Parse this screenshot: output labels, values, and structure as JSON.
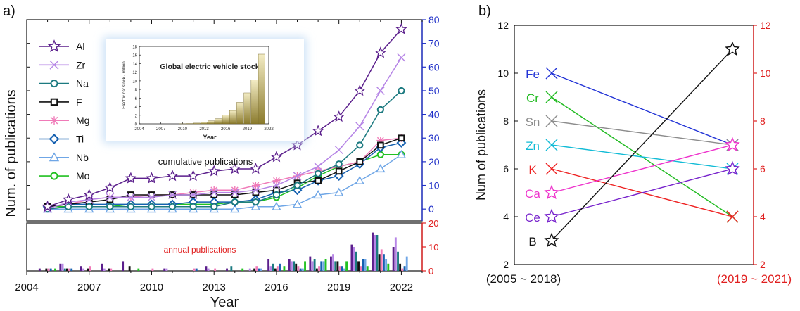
{
  "chart_data": [
    {
      "panel": "a)",
      "type": "line",
      "xlabel": "Year",
      "ylabel": "Num. of publications",
      "xlim": [
        2004,
        2023
      ],
      "xticks": [
        "2004",
        "2007",
        "2010",
        "2013",
        "2016",
        "2019",
        "2022"
      ],
      "ylim_right": [
        -5,
        80
      ],
      "yticks_right": [
        "0",
        "10",
        "20",
        "30",
        "40",
        "50",
        "60",
        "70",
        "80"
      ],
      "annotation": "cumulative publications",
      "x": [
        2005,
        2006,
        2007,
        2008,
        2009,
        2010,
        2011,
        2012,
        2013,
        2014,
        2015,
        2016,
        2017,
        2018,
        2019,
        2020,
        2021,
        2022
      ],
      "series": [
        {
          "name": "Al",
          "color": "#5b1f8c",
          "marker": "star",
          "values": [
            1,
            4,
            6,
            9,
            13,
            13,
            14,
            14,
            16,
            17,
            17,
            22,
            27,
            33,
            39,
            50,
            66,
            76
          ]
        },
        {
          "name": "Zr",
          "color": "#b685e6",
          "marker": "x",
          "values": [
            0,
            3,
            4,
            5,
            5,
            5,
            6,
            6,
            7,
            7,
            8,
            10,
            14,
            18,
            25,
            35,
            50,
            64
          ]
        },
        {
          "name": "Na",
          "color": "#1c7a80",
          "marker": "circle",
          "values": [
            0,
            1,
            1,
            1,
            1,
            1,
            1,
            1,
            1,
            3,
            3,
            6,
            10,
            15,
            19,
            27,
            42,
            50
          ]
        },
        {
          "name": "F",
          "color": "#111111",
          "marker": "square",
          "values": [
            1,
            2,
            3,
            4,
            6,
            6,
            6,
            6,
            6,
            6,
            7,
            8,
            11,
            12,
            16,
            20,
            27,
            30
          ]
        },
        {
          "name": "Mg",
          "color": "#f07ab8",
          "marker": "asterisk",
          "values": [
            1,
            2,
            4,
            5,
            5,
            6,
            6,
            7,
            8,
            8,
            10,
            12,
            14,
            16,
            18,
            20,
            29,
            30
          ]
        },
        {
          "name": "Ti",
          "color": "#1560b0",
          "marker": "diamond",
          "values": [
            1,
            2,
            2,
            2,
            2,
            2,
            2,
            3,
            3,
            3,
            4,
            7,
            8,
            12,
            14,
            19,
            26,
            28
          ]
        },
        {
          "name": "Nb",
          "color": "#6fa6e6",
          "marker": "triangle",
          "values": [
            0,
            0,
            0,
            0,
            0,
            0,
            0,
            0,
            0,
            0,
            1,
            1,
            2,
            6,
            7,
            12,
            17,
            23
          ]
        },
        {
          "name": "Mo",
          "color": "#21c121",
          "marker": "circle",
          "values": [
            1,
            1,
            1,
            1,
            2,
            2,
            2,
            2,
            2,
            3,
            3,
            5,
            9,
            14,
            18,
            20,
            23,
            23
          ]
        }
      ]
    },
    {
      "panel": "a) inset",
      "type": "bar",
      "title": "Global electric vehicle stock",
      "xlabel": "Year",
      "ylabel": "Electric car stock / million",
      "ylim": [
        0,
        18
      ],
      "yticks": [
        "0",
        "2",
        "4",
        "6",
        "8",
        "10",
        "12",
        "14",
        "16",
        "18"
      ],
      "xticks": [
        "2004",
        "2007",
        "2010",
        "2013",
        "2016",
        "2019",
        "2022"
      ],
      "categories": [
        2010,
        2011,
        2012,
        2013,
        2014,
        2015,
        2016,
        2017,
        2018,
        2019,
        2020,
        2021
      ],
      "values": [
        0.02,
        0.06,
        0.18,
        0.38,
        0.7,
        1.2,
        2.0,
        3.1,
        5.0,
        7.2,
        10.2,
        16.2
      ]
    },
    {
      "panel": "a) bottom",
      "type": "bar",
      "annotation": "annual publications",
      "ylim_right": [
        0,
        20
      ],
      "yticks_right": [
        "0",
        "10",
        "20"
      ],
      "x": [
        2005,
        2006,
        2007,
        2008,
        2009,
        2010,
        2011,
        2012,
        2013,
        2014,
        2015,
        2016,
        2017,
        2018,
        2019,
        2020,
        2021,
        2022
      ],
      "series": [
        {
          "name": "Al",
          "values": [
            1,
            3,
            2,
            3,
            4,
            0,
            1,
            0,
            2,
            1,
            0,
            5,
            5,
            6,
            6,
            11,
            16,
            10
          ]
        },
        {
          "name": "Zr",
          "values": [
            0,
            3,
            1,
            1,
            0,
            0,
            1,
            0,
            1,
            0,
            1,
            2,
            4,
            4,
            7,
            10,
            15,
            14
          ]
        },
        {
          "name": "Na",
          "values": [
            0,
            1,
            0,
            0,
            0,
            0,
            0,
            0,
            0,
            2,
            0,
            3,
            4,
            5,
            4,
            8,
            15,
            8
          ]
        },
        {
          "name": "F",
          "values": [
            1,
            1,
            1,
            1,
            2,
            0,
            0,
            0,
            0,
            0,
            1,
            1,
            3,
            1,
            4,
            4,
            7,
            3
          ]
        },
        {
          "name": "Mg",
          "values": [
            1,
            1,
            2,
            1,
            0,
            1,
            0,
            1,
            1,
            0,
            2,
            2,
            2,
            2,
            2,
            2,
            9,
            1
          ]
        },
        {
          "name": "Ti",
          "values": [
            1,
            1,
            0,
            0,
            0,
            0,
            0,
            1,
            0,
            0,
            1,
            3,
            1,
            4,
            2,
            5,
            7,
            2
          ]
        },
        {
          "name": "Nb",
          "values": [
            0,
            0,
            0,
            0,
            0,
            0,
            0,
            0,
            0,
            0,
            1,
            0,
            1,
            4,
            1,
            5,
            5,
            6
          ]
        },
        {
          "name": "Mo",
          "values": [
            1,
            0,
            0,
            0,
            1,
            0,
            0,
            0,
            0,
            1,
            0,
            2,
            4,
            5,
            4,
            2,
            3,
            0
          ]
        }
      ]
    },
    {
      "panel": "b)",
      "type": "line",
      "ylabel": "Num of publications",
      "ylim": [
        2,
        12
      ],
      "yticks": [
        "2",
        "4",
        "6",
        "8",
        "10",
        "12"
      ],
      "yticks_right": [
        "2",
        "4",
        "6",
        "8",
        "10",
        "12"
      ],
      "x_categories": [
        "(2005 ~ 2018)",
        "(2019 ~ 2021)"
      ],
      "series": [
        {
          "name": "Fe",
          "color": "#2233d6",
          "marker": "x",
          "values": [
            10,
            7
          ]
        },
        {
          "name": "Cr",
          "color": "#22bb22",
          "marker": "x",
          "values": [
            9,
            4
          ]
        },
        {
          "name": "Sn",
          "color": "#8c8c8c",
          "marker": "x",
          "values": [
            8,
            7
          ]
        },
        {
          "name": "Zn",
          "color": "#11bbd6",
          "marker": "x",
          "values": [
            7,
            6
          ]
        },
        {
          "name": "K",
          "color": "#ee2222",
          "marker": "x",
          "values": [
            6,
            4
          ]
        },
        {
          "name": "Ca",
          "color": "#ee33cc",
          "marker": "star",
          "values": [
            5,
            7
          ]
        },
        {
          "name": "Ce",
          "color": "#7722cc",
          "marker": "star",
          "values": [
            4,
            6
          ]
        },
        {
          "name": "B",
          "color": "#111111",
          "marker": "star",
          "values": [
            3,
            11
          ]
        }
      ]
    }
  ],
  "colors": {
    "right_axis_a": "#2030c8",
    "right_axis_bottom": "#e02020",
    "right_axis_b": "#e02020",
    "right_label_b": "#e02020",
    "inset_bar": "#c0b060",
    "inset_glow": "#cfe3f7"
  }
}
